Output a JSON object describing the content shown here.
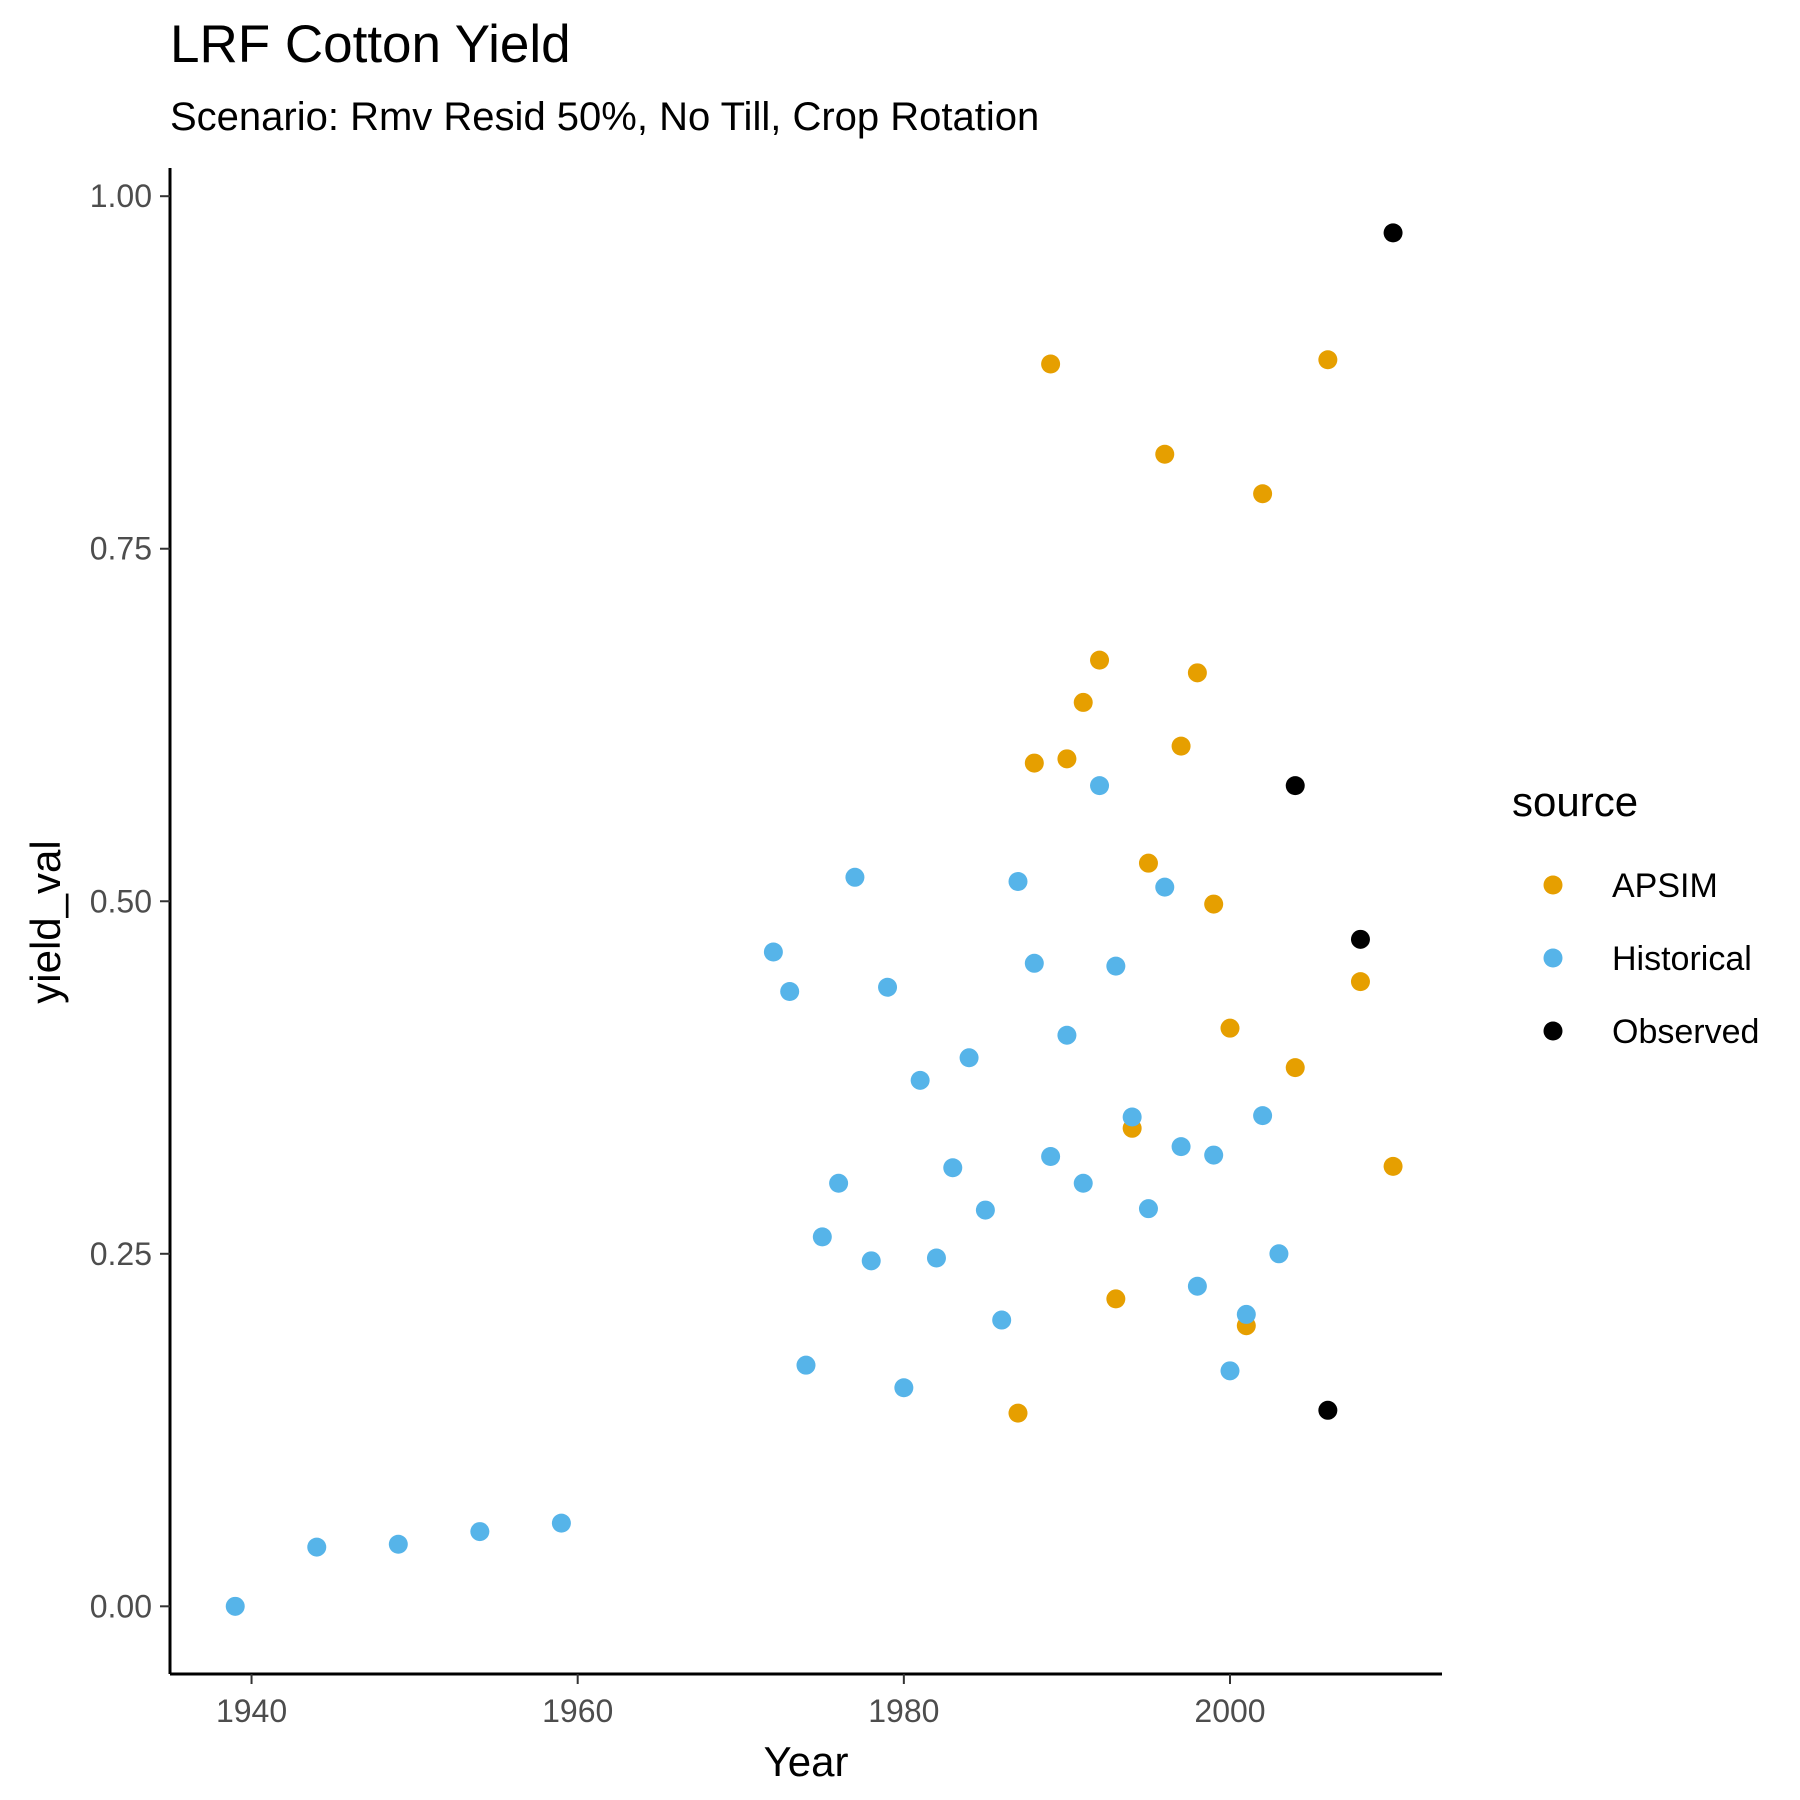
{
  "chart_data": {
    "type": "scatter",
    "title": "LRF Cotton Yield",
    "subtitle": "Scenario: Rmv Resid 50%, No Till, Crop Rotation",
    "xlabel": "Year",
    "ylabel": "yield_val",
    "xlim": [
      1935,
      2013
    ],
    "ylim": [
      -0.048,
      1.02
    ],
    "x_ticks": [
      1940,
      1960,
      1980,
      2000
    ],
    "x_tick_labels": [
      "1940",
      "1960",
      "1980",
      "2000"
    ],
    "y_ticks": [
      0,
      0.25,
      0.5,
      0.75,
      1.0
    ],
    "y_tick_labels": [
      "0.00",
      "0.25",
      "0.50",
      "0.75",
      "1.00"
    ],
    "grid": false,
    "legend": {
      "title": "source",
      "position": "right"
    },
    "series": [
      {
        "name": "APSIM",
        "color": "#E69F00",
        "points": [
          [
            1987,
            0.137
          ],
          [
            1988,
            0.598
          ],
          [
            1989,
            0.881
          ],
          [
            1990,
            0.601
          ],
          [
            1991,
            0.641
          ],
          [
            1992,
            0.671
          ],
          [
            1993,
            0.218
          ],
          [
            1994,
            0.339
          ],
          [
            1995,
            0.527
          ],
          [
            1996,
            0.817
          ],
          [
            1997,
            0.61
          ],
          [
            1998,
            0.662
          ],
          [
            1999,
            0.498
          ],
          [
            2000,
            0.41
          ],
          [
            2001,
            0.199
          ],
          [
            2002,
            0.789
          ],
          [
            2004,
            0.382
          ],
          [
            2006,
            0.884
          ],
          [
            2008,
            0.443
          ],
          [
            2010,
            0.312
          ]
        ]
      },
      {
        "name": "Historical",
        "color": "#56B4E9",
        "points": [
          [
            1939,
            0.0
          ],
          [
            1944,
            0.042
          ],
          [
            1949,
            0.044
          ],
          [
            1954,
            0.053
          ],
          [
            1959,
            0.059
          ],
          [
            1972,
            0.464
          ],
          [
            1973,
            0.436
          ],
          [
            1974,
            0.171
          ],
          [
            1975,
            0.262
          ],
          [
            1976,
            0.3
          ],
          [
            1977,
            0.517
          ],
          [
            1978,
            0.245
          ],
          [
            1979,
            0.439
          ],
          [
            1980,
            0.155
          ],
          [
            1981,
            0.373
          ],
          [
            1982,
            0.247
          ],
          [
            1983,
            0.311
          ],
          [
            1984,
            0.389
          ],
          [
            1985,
            0.281
          ],
          [
            1986,
            0.203
          ],
          [
            1987,
            0.514
          ],
          [
            1988,
            0.456
          ],
          [
            1989,
            0.319
          ],
          [
            1990,
            0.405
          ],
          [
            1991,
            0.3
          ],
          [
            1992,
            0.582
          ],
          [
            1993,
            0.454
          ],
          [
            1994,
            0.347
          ],
          [
            1995,
            0.282
          ],
          [
            1996,
            0.51
          ],
          [
            1997,
            0.326
          ],
          [
            1998,
            0.227
          ],
          [
            1999,
            0.32
          ],
          [
            2000,
            0.167
          ],
          [
            2001,
            0.207
          ],
          [
            2002,
            0.348
          ],
          [
            2003,
            0.25
          ]
        ]
      },
      {
        "name": "Observed",
        "color": "#000000",
        "points": [
          [
            2004,
            0.582
          ],
          [
            2006,
            0.139
          ],
          [
            2008,
            0.473
          ],
          [
            2010,
            0.974
          ]
        ]
      }
    ]
  }
}
